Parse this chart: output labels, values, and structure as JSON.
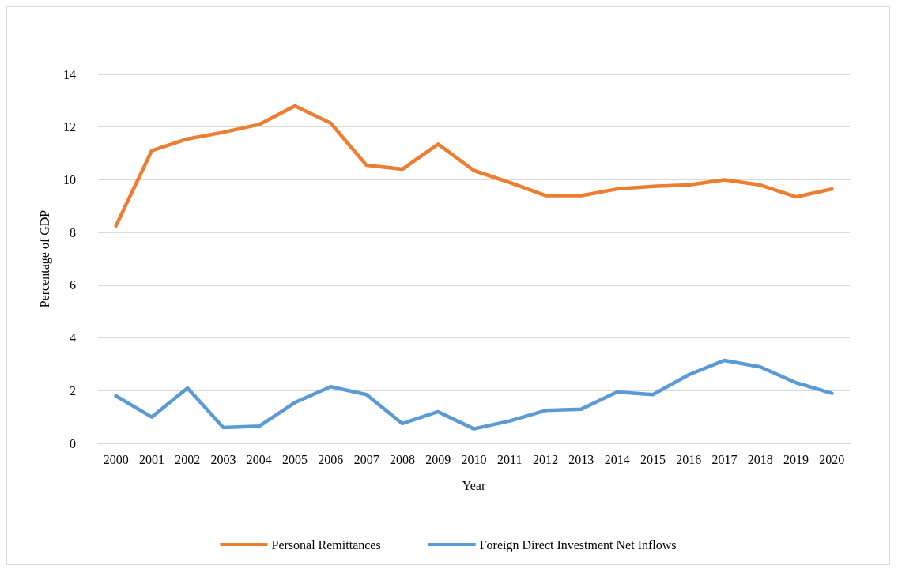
{
  "chart_data": {
    "type": "line",
    "xlabel": "Year",
    "ylabel": "Percentage of GDP",
    "categories": [
      "2000",
      "2001",
      "2002",
      "2003",
      "2004",
      "2005",
      "2006",
      "2007",
      "2008",
      "2009",
      "2010",
      "2011",
      "2012",
      "2013",
      "2014",
      "2015",
      "2016",
      "2017",
      "2018",
      "2019",
      "2020"
    ],
    "series": [
      {
        "name": "Personal Remittances",
        "color": "#ed7d31",
        "values": [
          8.25,
          11.1,
          11.55,
          11.8,
          12.1,
          12.8,
          12.15,
          10.55,
          10.4,
          11.35,
          10.35,
          9.9,
          9.4,
          9.4,
          9.65,
          9.75,
          9.8,
          10.0,
          9.8,
          9.35,
          9.65
        ]
      },
      {
        "name": "Foreign Direct Investment Net Inflows",
        "color": "#5b9bd5",
        "values": [
          1.8,
          1.0,
          2.1,
          0.6,
          0.65,
          1.55,
          2.15,
          1.85,
          0.75,
          1.2,
          0.55,
          0.85,
          1.25,
          1.3,
          1.95,
          1.85,
          2.6,
          3.15,
          2.9,
          2.3,
          1.9
        ]
      }
    ],
    "ylim": [
      0,
      14
    ],
    "yticks": [
      0,
      2,
      4,
      6,
      8,
      10,
      12,
      14
    ],
    "grid": "y",
    "legend": "bottom",
    "marker": "none",
    "line_style": "solid"
  }
}
